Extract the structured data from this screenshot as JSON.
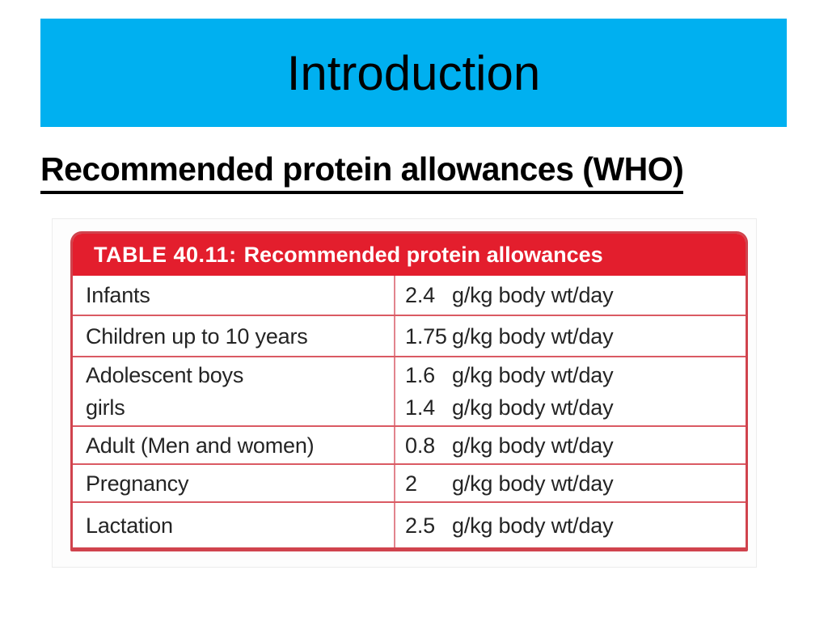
{
  "slide": {
    "title": "Introduction",
    "heading": "Recommended protein allowances (WHO)"
  },
  "table": {
    "header_prefix": "TABLE 40.11:",
    "header_text": "Recommended protein allowances",
    "rows": [
      {
        "label_lines": [
          "Infants"
        ],
        "values": [
          {
            "amount": "2.4",
            "unit": "g/kg body wt/day"
          }
        ]
      },
      {
        "label_lines": [
          "Children up to 10 years"
        ],
        "values": [
          {
            "amount": "1.75",
            "unit": "g/kg body wt/day"
          }
        ]
      },
      {
        "label_lines": [
          "Adolescent boys",
          "girls"
        ],
        "values": [
          {
            "amount": "1.6",
            "unit": "g/kg body wt/day"
          },
          {
            "amount": "1.4",
            "unit": "g/kg body wt/day"
          }
        ]
      },
      {
        "label_lines": [
          "Adult (Men and women)"
        ],
        "values": [
          {
            "amount": "0.8",
            "unit": "g/kg body wt/day"
          }
        ]
      },
      {
        "label_lines": [
          "Pregnancy"
        ],
        "values": [
          {
            "amount": "2",
            "unit": "g/kg body wt/day"
          }
        ]
      },
      {
        "label_lines": [
          "Lactation"
        ],
        "values": [
          {
            "amount": "2.5",
            "unit": "g/kg body wt/day"
          }
        ]
      }
    ]
  },
  "colors": {
    "title_band_cyan": "#00b0f0",
    "table_header_red": "#e31e2d",
    "table_border_red": "#d0434d",
    "row_separator_red": "#da5a63",
    "text_black": "#000000"
  }
}
